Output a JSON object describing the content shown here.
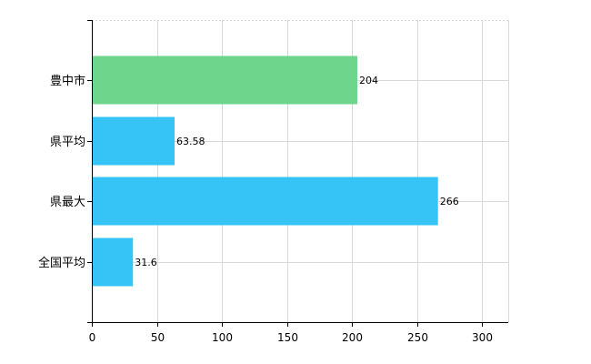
{
  "chart_data": {
    "type": "bar",
    "orientation": "horizontal",
    "categories": [
      "豊中市",
      "県平均",
      "県最大",
      "全国平均"
    ],
    "values": [
      204,
      63.58,
      266,
      31.6
    ],
    "value_labels": [
      "204",
      "63.58",
      "266",
      "31.6"
    ],
    "bar_colors": [
      "#6dd58c",
      "#36c4f6",
      "#36c4f6",
      "#36c4f6"
    ],
    "xlim": [
      0,
      320
    ],
    "x_ticks": [
      0,
      50,
      100,
      150,
      200,
      250,
      300
    ],
    "grid": true,
    "legend": "none",
    "title": "",
    "xlabel": "",
    "ylabel": ""
  }
}
